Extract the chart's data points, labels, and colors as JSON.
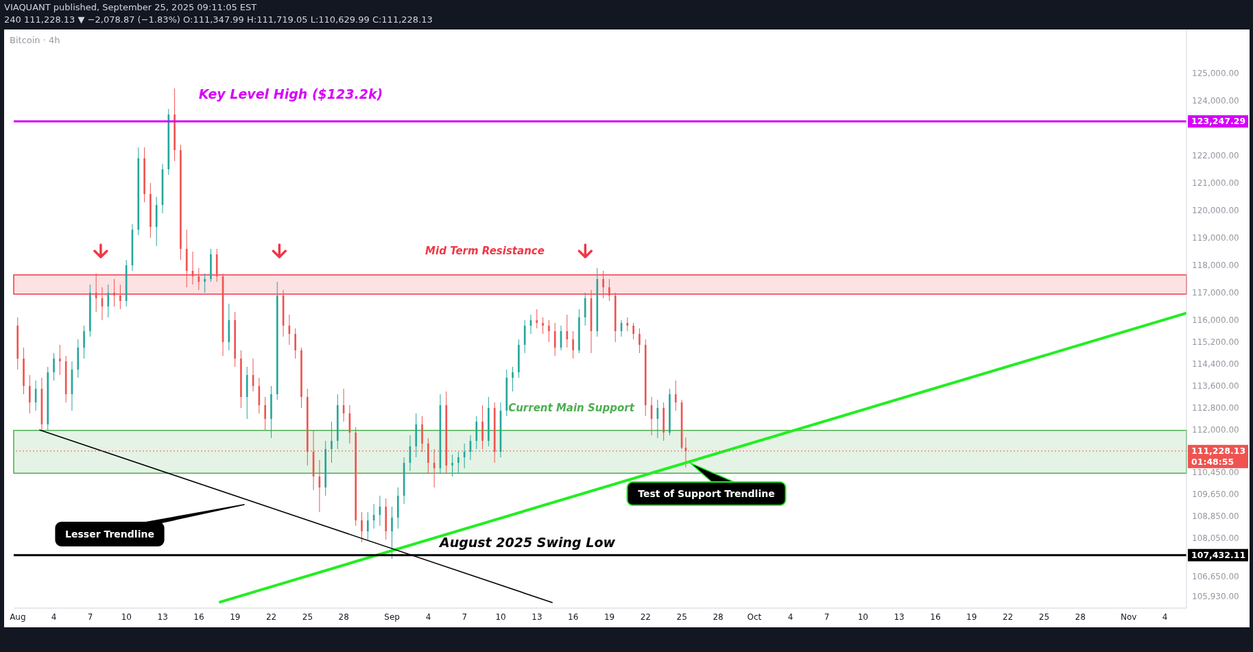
{
  "chart_data": {
    "type": "candlestick",
    "title": "Bitcoin · 4h",
    "subtitle": "VIAQUANT published, September 25, 2025 09:11:05 EST",
    "annotations": [
      "240  111,228.13 ▼ −2,078.87 (−1.83%)  O:111,347.99  H:111,719.05  L:110,629.99  C:111,228.13",
      "Key Level High ($123.2k)",
      "Mid Term Resistance",
      "Current Main Support",
      "Lesser Trendline",
      "Test of Support Trendline",
      "August 2025 Swing Low"
    ],
    "colors": [
      "#ef5350",
      "#ef5350",
      "#ef5350",
      "#26a69a",
      "#ef5350",
      "#26a69a",
      "#26a69a",
      "#ef5350",
      "#ef5350",
      "#26a69a",
      "#26a69a",
      "#26a69a",
      "#26a69a",
      "#ef5350",
      "#ef5350",
      "#26a69a",
      "#ef5350",
      "#ef5350",
      "#26a69a",
      "#26a69a",
      "#26a69a",
      "#ef5350",
      "#ef5350",
      "#26a69a",
      "#26a69a",
      "#26a69a",
      "#ef5350",
      "#ef5350",
      "#ef5350",
      "#ef5350",
      "#ef5350",
      "#26a69a",
      "#26a69a",
      "#ef5350",
      "#ef5350",
      "#26a69a",
      "#ef5350",
      "#ef5350",
      "#26a69a",
      "#ef5350",
      "#ef5350",
      "#ef5350",
      "#26a69a",
      "#26a69a",
      "#ef5350",
      "#ef5350",
      "#ef5350",
      "#ef5350",
      "#ef5350",
      "#ef5350",
      "#ef5350",
      "#26a69a",
      "#26a69a",
      "#26a69a",
      "#ef5350",
      "#ef5350",
      "#ef5350",
      "#ef5350",
      "#26a69a",
      "#26a69a",
      "#26a69a",
      "#ef5350",
      "#26a69a",
      "#26a69a",
      "#26a69a",
      "#26a69a",
      "#26a69a",
      "#ef5350",
      "#ef5350",
      "#ef5350",
      "#26a69a",
      "#ef5350",
      "#26a69a",
      "#26a69a",
      "#26a69a",
      "#26a69a",
      "#26a69a",
      "#ef5350",
      "#26a69a",
      "#ef5350",
      "#26a69a",
      "#26a69a",
      "#26a69a",
      "#26a69a",
      "#26a69a",
      "#26a69a",
      "#ef5350",
      "#ef5350",
      "#ef5350",
      "#ef5350",
      "#26a69a",
      "#ef5350",
      "#ef5350",
      "#26a69a",
      "#26a69a",
      "#ef5350",
      "#26a69a",
      "#ef5350",
      "#ef5350",
      "#ef5350",
      "#26a69a",
      "#ef5350",
      "#ef5350",
      "#ef5350",
      "#ef5350",
      "#ef5350",
      "#26a69a",
      "#ef5350",
      "#26a69a",
      "#ef5350",
      "#ef5350",
      "#ef5350"
    ],
    "x": [
      "2025-08-01T00:00",
      "2025-08-01T12:00",
      "2025-08-02T00:00",
      "2025-08-02T12:00",
      "2025-08-03T00:00",
      "2025-08-03T12:00",
      "2025-08-04T00:00",
      "2025-08-04T12:00",
      "2025-08-05T00:00",
      "2025-08-05T12:00",
      "2025-08-06T00:00",
      "2025-08-06T12:00",
      "2025-08-07T00:00",
      "2025-08-07T12:00",
      "2025-08-08T00:00",
      "2025-08-08T12:00",
      "2025-08-09T00:00",
      "2025-08-09T12:00",
      "2025-08-10T00:00",
      "2025-08-10T12:00",
      "2025-08-11T00:00",
      "2025-08-11T12:00",
      "2025-08-12T00:00",
      "2025-08-12T12:00",
      "2025-08-13T00:00",
      "2025-08-13T12:00",
      "2025-08-14T00:00",
      "2025-08-14T12:00",
      "2025-08-15T00:00",
      "2025-08-15T12:00",
      "2025-08-16T00:00",
      "2025-08-16T12:00",
      "2025-08-17T00:00",
      "2025-08-17T12:00",
      "2025-08-18T00:00",
      "2025-08-18T12:00",
      "2025-08-19T00:00",
      "2025-08-19T12:00",
      "2025-08-20T00:00",
      "2025-08-20T12:00",
      "2025-08-21T00:00",
      "2025-08-21T12:00",
      "2025-08-22T00:00",
      "2025-08-22T12:00",
      "2025-08-23T00:00",
      "2025-08-23T12:00",
      "2025-08-24T00:00",
      "2025-08-24T12:00",
      "2025-08-25T00:00",
      "2025-08-25T12:00",
      "2025-08-26T00:00",
      "2025-08-26T12:00",
      "2025-08-27T00:00",
      "2025-08-27T12:00",
      "2025-08-28T00:00",
      "2025-08-28T12:00",
      "2025-08-29T00:00",
      "2025-08-29T12:00",
      "2025-08-30T00:00",
      "2025-08-30T12:00",
      "2025-08-31T00:00",
      "2025-08-31T12:00",
      "2025-09-01T00:00",
      "2025-09-01T12:00",
      "2025-09-02T00:00",
      "2025-09-02T12:00",
      "2025-09-03T00:00",
      "2025-09-03T12:00",
      "2025-09-04T00:00",
      "2025-09-04T12:00",
      "2025-09-05T00:00",
      "2025-09-05T12:00",
      "2025-09-06T00:00",
      "2025-09-06T12:00",
      "2025-09-07T00:00",
      "2025-09-07T12:00",
      "2025-09-08T00:00",
      "2025-09-08T12:00",
      "2025-09-09T00:00",
      "2025-09-09T12:00",
      "2025-09-10T00:00",
      "2025-09-10T12:00",
      "2025-09-11T00:00",
      "2025-09-11T12:00",
      "2025-09-12T00:00",
      "2025-09-12T12:00",
      "2025-09-13T00:00",
      "2025-09-13T12:00",
      "2025-09-14T00:00",
      "2025-09-14T12:00",
      "2025-09-15T00:00",
      "2025-09-15T12:00",
      "2025-09-16T00:00",
      "2025-09-16T12:00",
      "2025-09-17T00:00",
      "2025-09-17T12:00",
      "2025-09-18T00:00",
      "2025-09-18T12:00",
      "2025-09-19T00:00",
      "2025-09-19T12:00",
      "2025-09-20T00:00",
      "2025-09-20T12:00",
      "2025-09-21T00:00",
      "2025-09-21T12:00",
      "2025-09-22T00:00",
      "2025-09-22T12:00",
      "2025-09-23T00:00",
      "2025-09-23T12:00",
      "2025-09-24T00:00",
      "2025-09-24T12:00",
      "2025-09-25T00:00",
      "2025-09-25T08:00"
    ],
    "ohlc": [
      [
        115800,
        116100,
        114200,
        114600
      ],
      [
        114600,
        115000,
        113300,
        113600
      ],
      [
        113600,
        114000,
        112600,
        113000
      ],
      [
        113000,
        113800,
        112700,
        113500
      ],
      [
        113500,
        113900,
        112000,
        112200
      ],
      [
        112200,
        114300,
        112000,
        114100
      ],
      [
        114100,
        114800,
        113800,
        114600
      ],
      [
        114600,
        115100,
        114000,
        114500
      ],
      [
        114500,
        114700,
        113000,
        113300
      ],
      [
        113300,
        114500,
        112700,
        114200
      ],
      [
        114200,
        115300,
        113900,
        115000
      ],
      [
        115000,
        115800,
        114600,
        115600
      ],
      [
        115600,
        117300,
        115400,
        117000
      ],
      [
        117000,
        117700,
        116300,
        116800
      ],
      [
        116800,
        117200,
        116000,
        116500
      ],
      [
        116500,
        117300,
        116100,
        117000
      ],
      [
        117000,
        117500,
        116500,
        116900
      ],
      [
        116900,
        117300,
        116400,
        116700
      ],
      [
        116700,
        118200,
        116500,
        118000
      ],
      [
        118000,
        119500,
        117800,
        119300
      ],
      [
        119300,
        122300,
        119100,
        121900
      ],
      [
        121900,
        122300,
        120300,
        120600
      ],
      [
        120600,
        121000,
        119000,
        119400
      ],
      [
        119400,
        120500,
        118700,
        120200
      ],
      [
        120200,
        121700,
        119900,
        121500
      ],
      [
        121500,
        123700,
        121300,
        123500
      ],
      [
        123500,
        124450,
        121800,
        122200
      ],
      [
        122200,
        122400,
        118200,
        118600
      ],
      [
        118600,
        119300,
        117200,
        117800
      ],
      [
        117800,
        118500,
        117300,
        117600
      ],
      [
        117600,
        117900,
        117100,
        117400
      ],
      [
        117400,
        117700,
        117000,
        117500
      ],
      [
        117500,
        118600,
        117400,
        118400
      ],
      [
        118400,
        118600,
        117400,
        117600
      ],
      [
        117600,
        117700,
        114700,
        115200
      ],
      [
        115200,
        116600,
        114900,
        116000
      ],
      [
        116000,
        116300,
        114300,
        114600
      ],
      [
        114600,
        114900,
        112800,
        113200
      ],
      [
        113200,
        114300,
        112400,
        114000
      ],
      [
        114000,
        114600,
        113400,
        113600
      ],
      [
        113600,
        113900,
        112600,
        112900
      ],
      [
        112900,
        113200,
        112000,
        112400
      ],
      [
        112400,
        113600,
        111700,
        113300
      ],
      [
        113300,
        117400,
        113100,
        116900
      ],
      [
        116900,
        117100,
        115400,
        115800
      ],
      [
        115800,
        116200,
        115100,
        115500
      ],
      [
        115500,
        115700,
        114600,
        114900
      ],
      [
        114900,
        115000,
        112800,
        113200
      ],
      [
        113200,
        113500,
        110700,
        111200
      ],
      [
        111200,
        112000,
        109800,
        110300
      ],
      [
        110300,
        110900,
        109000,
        109900
      ],
      [
        109900,
        111600,
        109600,
        111300
      ],
      [
        111300,
        112300,
        110800,
        111600
      ],
      [
        111600,
        113300,
        111300,
        112900
      ],
      [
        112900,
        113500,
        112300,
        112600
      ],
      [
        112600,
        112900,
        111500,
        111900
      ],
      [
        111900,
        112100,
        108500,
        108700
      ],
      [
        108700,
        109000,
        107900,
        108300
      ],
      [
        108300,
        109000,
        108000,
        108700
      ],
      [
        108700,
        109300,
        108400,
        108900
      ],
      [
        108900,
        109600,
        108500,
        109200
      ],
      [
        109200,
        109500,
        108000,
        108300
      ],
      [
        108300,
        109200,
        107300,
        108800
      ],
      [
        108800,
        109900,
        108400,
        109600
      ],
      [
        109600,
        111000,
        109300,
        110800
      ],
      [
        110800,
        111800,
        110500,
        111400
      ],
      [
        111400,
        112600,
        111000,
        112200
      ],
      [
        112200,
        112500,
        111200,
        111500
      ],
      [
        111500,
        111700,
        110400,
        110800
      ],
      [
        110800,
        111300,
        109900,
        110600
      ],
      [
        110600,
        113300,
        110400,
        112900
      ],
      [
        112900,
        113400,
        110400,
        110700
      ],
      [
        110700,
        111100,
        110300,
        110800
      ],
      [
        110800,
        111200,
        110400,
        111000
      ],
      [
        111000,
        111500,
        110600,
        111200
      ],
      [
        111200,
        111800,
        110900,
        111600
      ],
      [
        111600,
        112500,
        111300,
        112300
      ],
      [
        112300,
        112900,
        111300,
        111600
      ],
      [
        111600,
        113200,
        111400,
        112800
      ],
      [
        112800,
        113000,
        110800,
        111200
      ],
      [
        111200,
        113000,
        111000,
        112700
      ],
      [
        112700,
        114200,
        112500,
        113900
      ],
      [
        113900,
        114300,
        113400,
        114100
      ],
      [
        114100,
        115300,
        113900,
        115100
      ],
      [
        115100,
        116000,
        114800,
        115800
      ],
      [
        115800,
        116200,
        115500,
        116000
      ],
      [
        116000,
        116400,
        115700,
        115900
      ],
      [
        115900,
        116100,
        115500,
        115800
      ],
      [
        115800,
        116000,
        115200,
        115600
      ],
      [
        115600,
        115900,
        114700,
        115000
      ],
      [
        115000,
        115800,
        114900,
        115600
      ],
      [
        115600,
        116200,
        115000,
        115300
      ],
      [
        115300,
        115600,
        114600,
        114900
      ],
      [
        114900,
        116400,
        114800,
        116100
      ],
      [
        116100,
        117000,
        115800,
        116800
      ],
      [
        116800,
        117100,
        114800,
        115600
      ],
      [
        115600,
        117900,
        115400,
        117500
      ],
      [
        117500,
        117800,
        116800,
        117200
      ],
      [
        117200,
        117500,
        116700,
        116900
      ],
      [
        116900,
        117000,
        115200,
        115600
      ],
      [
        115600,
        116000,
        115400,
        115900
      ],
      [
        115900,
        116100,
        115600,
        115800
      ],
      [
        115800,
        115900,
        115300,
        115500
      ],
      [
        115500,
        115700,
        114800,
        115100
      ],
      [
        115100,
        115300,
        112500,
        112900
      ],
      [
        112900,
        113200,
        111800,
        112400
      ],
      [
        112400,
        113100,
        111700,
        112800
      ],
      [
        112800,
        113000,
        111600,
        111900
      ],
      [
        111900,
        113500,
        111800,
        113300
      ],
      [
        113300,
        113800,
        112700,
        113000
      ],
      [
        113000,
        113100,
        111300,
        111348
      ],
      [
        111347.99,
        111719.05,
        110629.99,
        111228.13
      ]
    ],
    "series": [
      {
        "type": "line",
        "color": "#22ee22",
        "x": [
          "2025-08-17T16:00",
          "2025-11-05T19:00"
        ],
        "values": [
          105710,
          116260
        ]
      },
      {
        "type": "line",
        "color": "#000000",
        "x": [
          "2025-08-02T19:00",
          "2025-09-14T07:00"
        ],
        "values": [
          112000,
          105700
        ]
      }
    ],
    "ref_lines": [
      {
        "axis": "y",
        "value": 123247.29,
        "label": "123,247.29",
        "color": "#d500f9"
      },
      {
        "axis": "y",
        "value": 107432.11,
        "label": "107,432.11",
        "color": "#000000"
      },
      {
        "axis": "y",
        "value": 111228.13,
        "label": "111,228.13\n01:48:55",
        "color": "#ef5350",
        "line_style": "dotted"
      }
    ],
    "bands": [
      {
        "axis": "y",
        "from": 116950,
        "to": 117650,
        "color": "#f23645"
      },
      {
        "axis": "y",
        "from": 110420,
        "to": 111980,
        "color": "#4caf50"
      }
    ],
    "xlim": [
      "2025-07-31T16:00",
      "2025-11-05T19:00"
    ],
    "xticks": [
      {
        "value": "2025-08-01",
        "label": "Aug"
      },
      {
        "value": "2025-08-04",
        "label": "4"
      },
      {
        "value": "2025-08-07",
        "label": "7"
      },
      {
        "value": "2025-08-10",
        "label": "10"
      },
      {
        "value": "2025-08-13",
        "label": "13"
      },
      {
        "value": "2025-08-16",
        "label": "16"
      },
      {
        "value": "2025-08-19",
        "label": "19"
      },
      {
        "value": "2025-08-22",
        "label": "22"
      },
      {
        "value": "2025-08-25",
        "label": "25"
      },
      {
        "value": "2025-08-28",
        "label": "28"
      },
      {
        "value": "2025-09-01",
        "label": "Sep"
      },
      {
        "value": "2025-09-04",
        "label": "4"
      },
      {
        "value": "2025-09-07",
        "label": "7"
      },
      {
        "value": "2025-09-10",
        "label": "10"
      },
      {
        "value": "2025-09-13",
        "label": "13"
      },
      {
        "value": "2025-09-16",
        "label": "16"
      },
      {
        "value": "2025-09-19",
        "label": "19"
      },
      {
        "value": "2025-09-22",
        "label": "22"
      },
      {
        "value": "2025-09-25",
        "label": "25"
      },
      {
        "value": "2025-09-28",
        "label": "28"
      },
      {
        "value": "2025-10-01",
        "label": "Oct"
      },
      {
        "value": "2025-10-04",
        "label": "4"
      },
      {
        "value": "2025-10-07",
        "label": "7"
      },
      {
        "value": "2025-10-10",
        "label": "10"
      },
      {
        "value": "2025-10-13",
        "label": "13"
      },
      {
        "value": "2025-10-16",
        "label": "16"
      },
      {
        "value": "2025-10-19",
        "label": "19"
      },
      {
        "value": "2025-10-22",
        "label": "22"
      },
      {
        "value": "2025-10-25",
        "label": "25"
      },
      {
        "value": "2025-10-28",
        "label": "28"
      },
      {
        "value": "2025-11-01",
        "label": "Nov"
      },
      {
        "value": "2025-11-04",
        "label": "4"
      }
    ],
    "ylim": [
      105500,
      126600
    ],
    "yticks": [
      {
        "value": 105930,
        "label": "105,930.00"
      },
      {
        "value": 106650,
        "label": "106,650.00"
      },
      {
        "value": 108050,
        "label": "108,050.00"
      },
      {
        "value": 108850,
        "label": "108,850.00"
      },
      {
        "value": 109650,
        "label": "109,650.00"
      },
      {
        "value": 110450,
        "label": "110,450.00"
      },
      {
        "value": 112000,
        "label": "112,000.00"
      },
      {
        "value": 112800,
        "label": "112,800.00"
      },
      {
        "value": 113600,
        "label": "113,600.00"
      },
      {
        "value": 114400,
        "label": "114,400.00"
      },
      {
        "value": 115200,
        "label": "115,200.00"
      },
      {
        "value": 116000,
        "label": "116,000.00"
      },
      {
        "value": 117000,
        "label": "117,000.00"
      },
      {
        "value": 118000,
        "label": "118,000.00"
      },
      {
        "value": 119000,
        "label": "119,000.00"
      },
      {
        "value": 120000,
        "label": "120,000.00"
      },
      {
        "value": 121000,
        "label": "121,000.00"
      },
      {
        "value": 122000,
        "label": "122,000.00"
      },
      {
        "value": 124000,
        "label": "124,000.00"
      },
      {
        "value": 125000,
        "label": "125,000.00"
      }
    ]
  }
}
